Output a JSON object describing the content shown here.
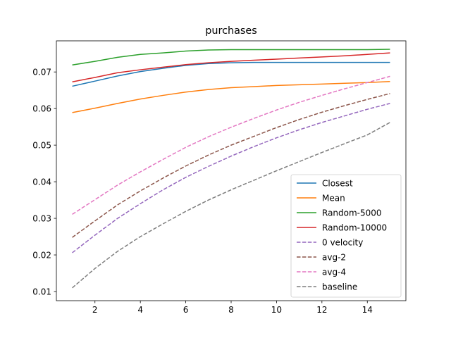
{
  "chart_data": {
    "type": "line",
    "title": "purchases",
    "xlabel": "",
    "ylabel": "",
    "xlim": [
      0.3,
      15.7
    ],
    "ylim": [
      0.0075,
      0.0785
    ],
    "xticks": [
      2,
      4,
      6,
      8,
      10,
      12,
      14
    ],
    "xtick_labels": [
      "2",
      "4",
      "6",
      "8",
      "10",
      "12",
      "14"
    ],
    "yticks": [
      0.01,
      0.02,
      0.03,
      0.04,
      0.05,
      0.06,
      0.07
    ],
    "ytick_labels": [
      "0.01",
      "0.02",
      "0.03",
      "0.04",
      "0.05",
      "0.06",
      "0.07"
    ],
    "grid": false,
    "legend_position": "lower-right",
    "x": [
      1,
      2,
      3,
      4,
      5,
      6,
      7,
      8,
      9,
      10,
      11,
      12,
      13,
      14,
      15
    ],
    "series": [
      {
        "name": "Closest",
        "color": "#1f77b4",
        "dash": "solid",
        "values": [
          0.0661,
          0.0675,
          0.0689,
          0.0701,
          0.071,
          0.0718,
          0.0723,
          0.0725,
          0.0726,
          0.0726,
          0.0726,
          0.0726,
          0.0726,
          0.0726,
          0.0726
        ]
      },
      {
        "name": "Mean",
        "color": "#ff7f0e",
        "dash": "solid",
        "values": [
          0.0589,
          0.0601,
          0.0614,
          0.0626,
          0.0636,
          0.0645,
          0.0652,
          0.0657,
          0.066,
          0.0663,
          0.0665,
          0.0667,
          0.0669,
          0.0671,
          0.0674
        ]
      },
      {
        "name": "Random-5000",
        "color": "#2ca02c",
        "dash": "solid",
        "values": [
          0.0719,
          0.0729,
          0.074,
          0.0748,
          0.0752,
          0.0757,
          0.076,
          0.0761,
          0.0761,
          0.0761,
          0.0761,
          0.0761,
          0.0761,
          0.0761,
          0.0762
        ]
      },
      {
        "name": "Random-10000",
        "color": "#d62728",
        "dash": "solid",
        "values": [
          0.0673,
          0.0685,
          0.0698,
          0.0706,
          0.0713,
          0.072,
          0.0725,
          0.0729,
          0.0732,
          0.0735,
          0.0738,
          0.0741,
          0.0744,
          0.0748,
          0.0752
        ]
      },
      {
        "name": "0 velocity",
        "color": "#9467bd",
        "dash": "dashed",
        "values": [
          0.0206,
          0.0254,
          0.03,
          0.034,
          0.0378,
          0.0412,
          0.0442,
          0.047,
          0.0496,
          0.052,
          0.0542,
          0.0562,
          0.058,
          0.0598,
          0.0614
        ]
      },
      {
        "name": "avg-2",
        "color": "#8c564b",
        "dash": "dashed",
        "values": [
          0.0248,
          0.0293,
          0.0337,
          0.0375,
          0.041,
          0.0443,
          0.0473,
          0.05,
          0.0524,
          0.0548,
          0.057,
          0.059,
          0.0608,
          0.0625,
          0.0641
        ]
      },
      {
        "name": "avg-4",
        "color": "#e377c2",
        "dash": "dashed",
        "values": [
          0.0311,
          0.0351,
          0.0391,
          0.0427,
          0.0461,
          0.0494,
          0.0523,
          0.0549,
          0.0573,
          0.0596,
          0.0617,
          0.0636,
          0.0654,
          0.0671,
          0.0688
        ]
      },
      {
        "name": "baseline",
        "color": "#7f7f7f",
        "dash": "dashed",
        "values": [
          0.011,
          0.0163,
          0.021,
          0.025,
          0.0285,
          0.0319,
          0.035,
          0.0378,
          0.0404,
          0.043,
          0.0455,
          0.048,
          0.0504,
          0.0528,
          0.0562
        ]
      }
    ]
  }
}
